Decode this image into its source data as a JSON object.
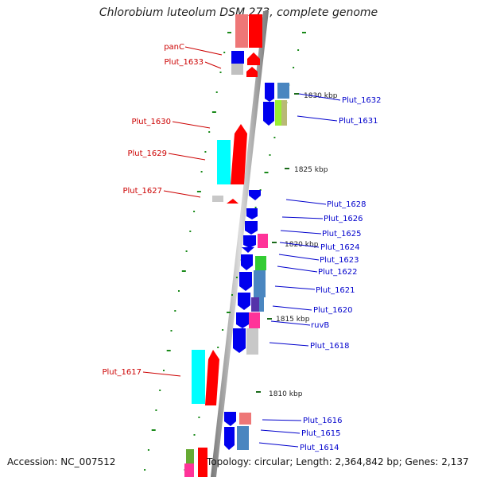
{
  "title": "Chlorobium luteolum DSM 273, complete genome",
  "footer": {
    "accession": "Accession: NC_007512",
    "summary": "Topology: circular; Length: 2,364,842 bp; Genes: 2,137"
  },
  "colors": {
    "reverse_label": "#cc0000",
    "forward_label": "#0000cc",
    "backbone": "#999999",
    "tick": "#007700"
  },
  "scale_labels": [
    "1830 kbp",
    "1825 kbp",
    "1820 kbp",
    "1815 kbp",
    "1810 kbp"
  ],
  "reverse_genes": [
    "panC",
    "Plut_1633",
    "Plut_1630",
    "Plut_1629",
    "Plut_1627",
    "Plut_1617"
  ],
  "forward_genes": [
    "Plut_1632",
    "Plut_1631",
    "Plut_1628",
    "Plut_1626",
    "Plut_1625",
    "Plut_1624",
    "Plut_1623",
    "Plut_1622",
    "Plut_1621",
    "Plut_1620",
    "ruvB",
    "Plut_1618",
    "Plut_1616",
    "Plut_1615",
    "Plut_1614"
  ]
}
